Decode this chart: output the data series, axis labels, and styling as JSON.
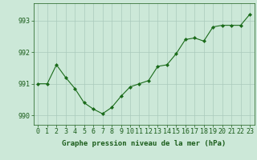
{
  "x": [
    0,
    1,
    2,
    3,
    4,
    5,
    6,
    7,
    8,
    9,
    10,
    11,
    12,
    13,
    14,
    15,
    16,
    17,
    18,
    19,
    20,
    21,
    22,
    23
  ],
  "y": [
    991.0,
    991.0,
    991.6,
    991.2,
    990.85,
    990.4,
    990.2,
    990.05,
    990.25,
    990.6,
    990.9,
    991.0,
    991.1,
    991.55,
    991.6,
    991.95,
    992.4,
    992.45,
    992.35,
    992.8,
    992.85,
    992.85,
    992.85,
    993.2
  ],
  "line_color": "#1a6b1a",
  "marker_color": "#1a6b1a",
  "bg_color": "#cce8d8",
  "grid_color": "#aacabc",
  "ylabel_ticks": [
    990,
    991,
    992,
    993
  ],
  "xlabel_label": "Graphe pression niveau de la mer (hPa)",
  "xlim": [
    -0.5,
    23.5
  ],
  "ylim": [
    989.7,
    993.55
  ],
  "tick_color": "#1a5c1a",
  "label_color": "#1a5c1a",
  "label_fontsize": 6.5,
  "tick_fontsize": 6.0
}
